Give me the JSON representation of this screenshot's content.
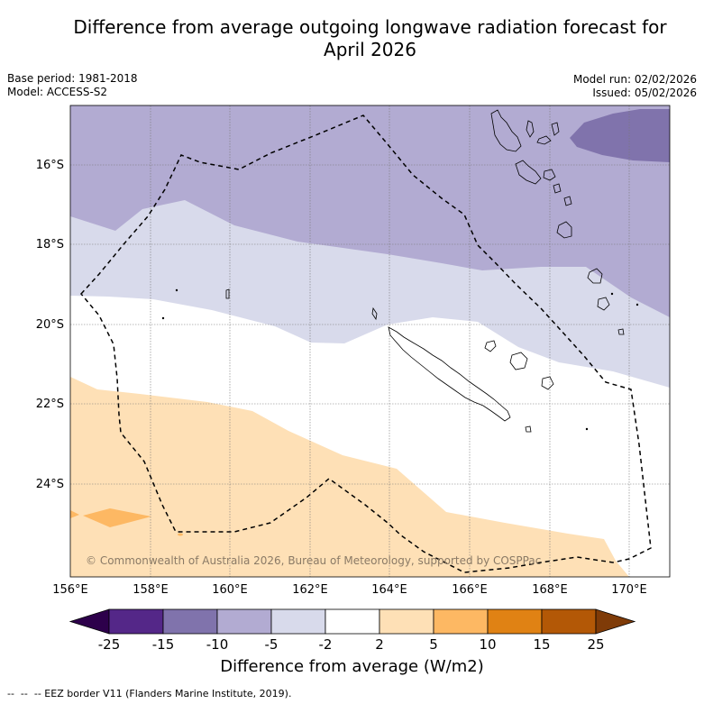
{
  "title_line1": "Difference from average outgoing longwave radiation forecast for",
  "title_line2": "April 2026",
  "meta": {
    "base_period": "Base period: 1981-2018",
    "model": "Model: ACCESS-S2",
    "model_run": "Model run: 02/02/2026",
    "issued": "Issued: 05/02/2026"
  },
  "map": {
    "lon_labels": [
      "156°E",
      "158°E",
      "160°E",
      "162°E",
      "164°E",
      "166°E",
      "168°E",
      "170°E"
    ],
    "lat_labels": [
      "16°S",
      "18°S",
      "20°S",
      "22°S",
      "24°S"
    ],
    "copyright": "© Commonwealth of Australia 2026, Bureau of Meteorology, supported by COSPPac"
  },
  "colorbar": {
    "ticks": [
      "-25",
      "-15",
      "-10",
      "-5",
      "-2",
      "2",
      "5",
      "10",
      "15",
      "25"
    ],
    "colors": [
      "#2d004b",
      "#542788",
      "#8073ac",
      "#b2abd2",
      "#d8daeb",
      "#ffffff",
      "#fee0b6",
      "#fdb863",
      "#e08214",
      "#b35806",
      "#7f3b08"
    ],
    "title": "Difference from average (W/m2)"
  },
  "legend": {
    "eez_note": "-- EEZ border V11 (Flanders Marine Institute, 2019)."
  }
}
